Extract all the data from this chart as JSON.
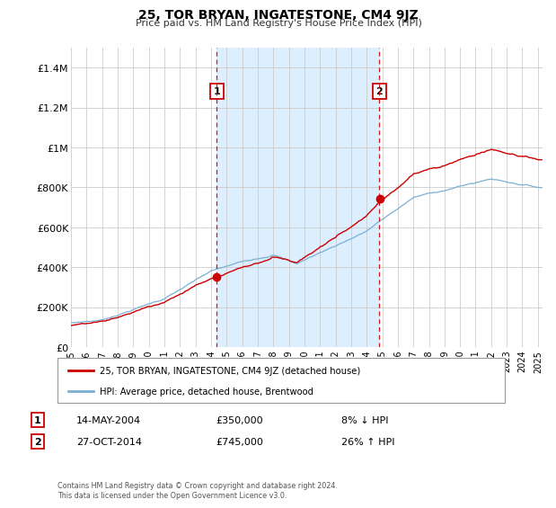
{
  "title": "25, TOR BRYAN, INGATESTONE, CM4 9JZ",
  "subtitle": "Price paid vs. HM Land Registry's House Price Index (HPI)",
  "ylim": [
    0,
    1500000
  ],
  "yticks": [
    0,
    200000,
    400000,
    600000,
    800000,
    1000000,
    1200000,
    1400000
  ],
  "ytick_labels": [
    "£0",
    "£200K",
    "£400K",
    "£600K",
    "£800K",
    "£1M",
    "£1.2M",
    "£1.4M"
  ],
  "sale1_date_num": 2004.37,
  "sale1_price": 350000,
  "sale1_date_str": "14-MAY-2004",
  "sale1_pct": "8% ↓ HPI",
  "sale2_date_num": 2014.82,
  "sale2_price": 745000,
  "sale2_date_str": "27-OCT-2014",
  "sale2_pct": "26% ↑ HPI",
  "line_color_property": "#cc0000",
  "line_color_hpi": "#7ab0d4",
  "highlight_bg": "#ddeeff",
  "grid_color": "#cccccc",
  "legend_label_property": "25, TOR BRYAN, INGATESTONE, CM4 9JZ (detached house)",
  "legend_label_hpi": "HPI: Average price, detached house, Brentwood",
  "footer": "Contains HM Land Registry data © Crown copyright and database right 2024.\nThis data is licensed under the Open Government Licence v3.0.",
  "xstart": 1995.0,
  "xend": 2025.3
}
